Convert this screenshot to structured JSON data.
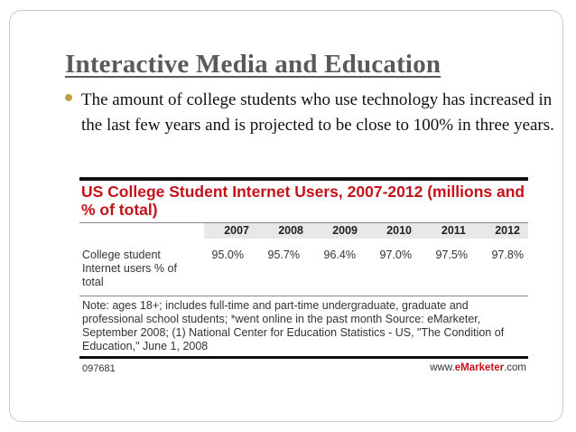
{
  "slide": {
    "title": "Interactive Media and Education",
    "bullet": "The amount of college students who use technology has increased in the last few years and is projected to be close to 100% in three years."
  },
  "figure": {
    "title": "US College Student Internet Users, 2007-2012 (millions and % of total)",
    "row_label": "College student Internet users % of total",
    "note": "Note: ages 18+; includes full-time and part-time undergraduate, graduate and professional school students; *went online in the past month Source: eMarketer, September 2008; (1) National Center for Education Statistics - US, \"The Condition of Education,\" June 1, 2008",
    "id": "097681",
    "brand_prefix": "www.",
    "brand_name": "eMarketer",
    "brand_suffix": ".com",
    "title_color": "#c4121a",
    "bullet_color": "#bf9f3e"
  },
  "chart_data": {
    "type": "table",
    "title": "US College Student Internet Users, 2007-2012 (millions and % of total)",
    "columns": [
      "2007",
      "2008",
      "2009",
      "2010",
      "2011",
      "2012"
    ],
    "rows": [
      {
        "label": "College student Internet users % of total",
        "values": [
          "95.0%",
          "95.7%",
          "96.4%",
          "97.0%",
          "97.5%",
          "97.8%"
        ]
      }
    ]
  }
}
